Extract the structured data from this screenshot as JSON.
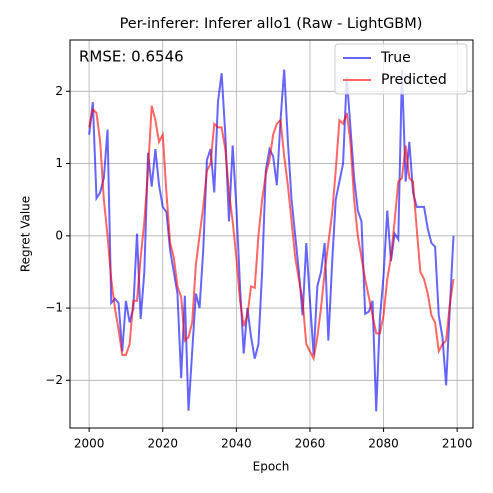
{
  "chart_data": {
    "type": "line",
    "title": "Per-inferer: Inferer allo1 (Raw - LightGBM)",
    "xlabel": "Epoch",
    "ylabel": "Regret Value",
    "annotation": "RMSE: 0.6546",
    "x": [
      2000,
      2001,
      2002,
      2003,
      2004,
      2005,
      2006,
      2007,
      2008,
      2009,
      2010,
      2011,
      2012,
      2013,
      2014,
      2015,
      2016,
      2017,
      2018,
      2019,
      2020,
      2021,
      2022,
      2023,
      2024,
      2025,
      2026,
      2027,
      2028,
      2029,
      2030,
      2031,
      2032,
      2033,
      2034,
      2035,
      2036,
      2037,
      2038,
      2039,
      2040,
      2041,
      2042,
      2043,
      2044,
      2045,
      2046,
      2047,
      2048,
      2049,
      2050,
      2051,
      2052,
      2053,
      2054,
      2055,
      2056,
      2057,
      2058,
      2059,
      2060,
      2061,
      2062,
      2063,
      2064,
      2065,
      2066,
      2067,
      2068,
      2069,
      2070,
      2071,
      2072,
      2073,
      2074,
      2075,
      2076,
      2077,
      2078,
      2079,
      2080,
      2081,
      2082,
      2083,
      2084,
      2085,
      2086,
      2087,
      2088,
      2089,
      2090,
      2091,
      2092,
      2093,
      2094,
      2095,
      2096,
      2097,
      2098,
      2099
    ],
    "series": [
      {
        "name": "True",
        "color": "#0000ff",
        "alpha": 0.6,
        "values": [
          1.4,
          1.85,
          0.52,
          0.6,
          0.8,
          1.47,
          -0.93,
          -0.87,
          -0.93,
          -1.6,
          -0.9,
          -1.2,
          -1.0,
          0.03,
          -1.15,
          -0.5,
          1.15,
          0.68,
          1.2,
          0.7,
          0.4,
          0.33,
          -0.2,
          -0.5,
          -0.8,
          -1.97,
          -0.83,
          -2.42,
          -1.6,
          -0.8,
          -1.0,
          -0.2,
          1.05,
          1.2,
          0.6,
          1.85,
          2.25,
          1.4,
          0.2,
          1.25,
          0.4,
          -0.7,
          -1.63,
          -1.0,
          -1.4,
          -1.7,
          -1.5,
          -0.5,
          0.9,
          1.2,
          1.1,
          0.7,
          1.6,
          2.3,
          1.3,
          0.5,
          0.0,
          -0.5,
          -1.1,
          -0.1,
          -0.9,
          -1.65,
          -0.7,
          -0.5,
          -0.1,
          -1.45,
          -0.4,
          0.5,
          0.75,
          1.0,
          2.2,
          1.5,
          0.8,
          0.35,
          0.2,
          -1.08,
          -1.05,
          -0.9,
          -2.43,
          -1.15,
          -0.55,
          0.35,
          -0.35,
          0.03,
          -0.05,
          2.3,
          0.75,
          1.3,
          0.6,
          0.4,
          0.4,
          0.4,
          0.1,
          -0.1,
          -0.15,
          -1.1,
          -1.4,
          -2.07,
          -1.0,
          0.0
        ]
      },
      {
        "name": "Predicted",
        "color": "#ff0000",
        "alpha": 0.6,
        "values": [
          1.5,
          1.75,
          1.7,
          1.3,
          0.5,
          0.0,
          -0.6,
          -1.0,
          -1.3,
          -1.65,
          -1.65,
          -1.5,
          -0.9,
          -0.9,
          -0.3,
          0.2,
          0.9,
          1.8,
          1.6,
          1.3,
          1.4,
          0.6,
          -0.1,
          -0.3,
          -0.7,
          -0.85,
          -1.45,
          -1.4,
          -1.2,
          -0.4,
          0.0,
          0.4,
          0.9,
          1.0,
          1.55,
          1.5,
          1.5,
          1.2,
          0.6,
          0.2,
          -0.3,
          -0.9,
          -1.25,
          -1.1,
          -0.7,
          -0.72,
          0.0,
          0.5,
          0.85,
          1.05,
          1.4,
          1.55,
          1.6,
          1.1,
          0.7,
          0.2,
          -0.3,
          -0.6,
          -0.9,
          -1.5,
          -1.6,
          -1.7,
          -1.4,
          -1.0,
          -0.5,
          -0.1,
          0.3,
          0.9,
          1.6,
          1.55,
          1.7,
          1.3,
          0.5,
          0.0,
          -0.3,
          -0.6,
          -0.85,
          -1.1,
          -1.35,
          -1.35,
          -1.1,
          -0.6,
          -0.3,
          0.2,
          0.75,
          0.8,
          1.25,
          0.8,
          0.75,
          0.1,
          -0.5,
          -0.6,
          -0.8,
          -1.1,
          -1.2,
          -1.6,
          -1.5,
          -1.45,
          -0.95,
          -0.6
        ]
      }
    ],
    "xlim": [
      1994.8,
      2104.3
    ],
    "ylim": [
      -2.66,
      2.71
    ],
    "xticks": [
      2000,
      2020,
      2040,
      2060,
      2080,
      2100
    ],
    "yticks": [
      {
        "value": -2,
        "label": "−2"
      },
      {
        "value": -1,
        "label": "−1"
      },
      0,
      1,
      2
    ],
    "grid": true,
    "legend": "upper right"
  }
}
